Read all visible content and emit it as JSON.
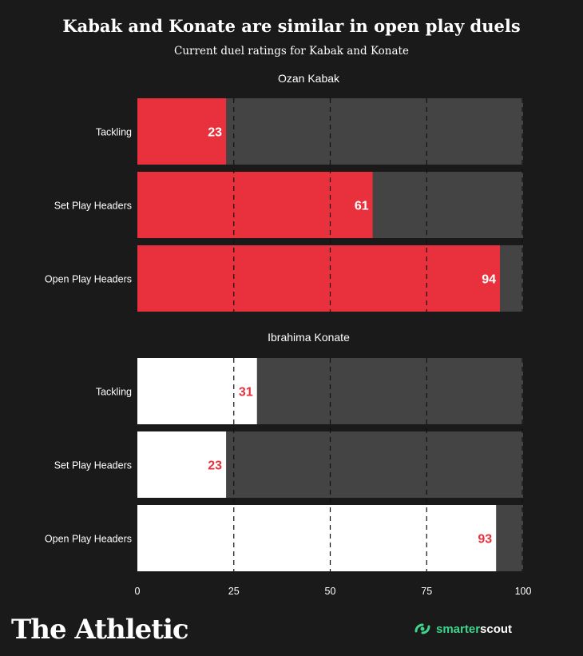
{
  "chart_data": {
    "type": "bar",
    "title": "Kabak and Konate are similar in open play duels",
    "subtitle": "Current duel ratings for Kabak and Konate",
    "xlim": [
      0,
      100
    ],
    "xticks": [
      0,
      25,
      50,
      75,
      100
    ],
    "grid": "dashed vertical lines at 25, 50, 75, 100",
    "panels": [
      {
        "name": "Ozan Kabak",
        "color": "#e8313c",
        "label_color": "#ffffff",
        "categories": [
          "Tackling",
          "Set Play Headers",
          "Open Play Headers"
        ],
        "values": [
          23,
          61,
          94
        ]
      },
      {
        "name": "Ibrahima Konate",
        "color": "#ffffff",
        "label_color": "#e8313c",
        "categories": [
          "Tackling",
          "Set Play Headers",
          "Open Play Headers"
        ],
        "values": [
          31,
          23,
          93
        ]
      }
    ],
    "background_track_color": "#444444"
  },
  "footer": {
    "brand": "The Athletic",
    "logo_smarter": "smarter",
    "logo_scout": "scout",
    "logo_icon": "smarterscout-icon"
  }
}
